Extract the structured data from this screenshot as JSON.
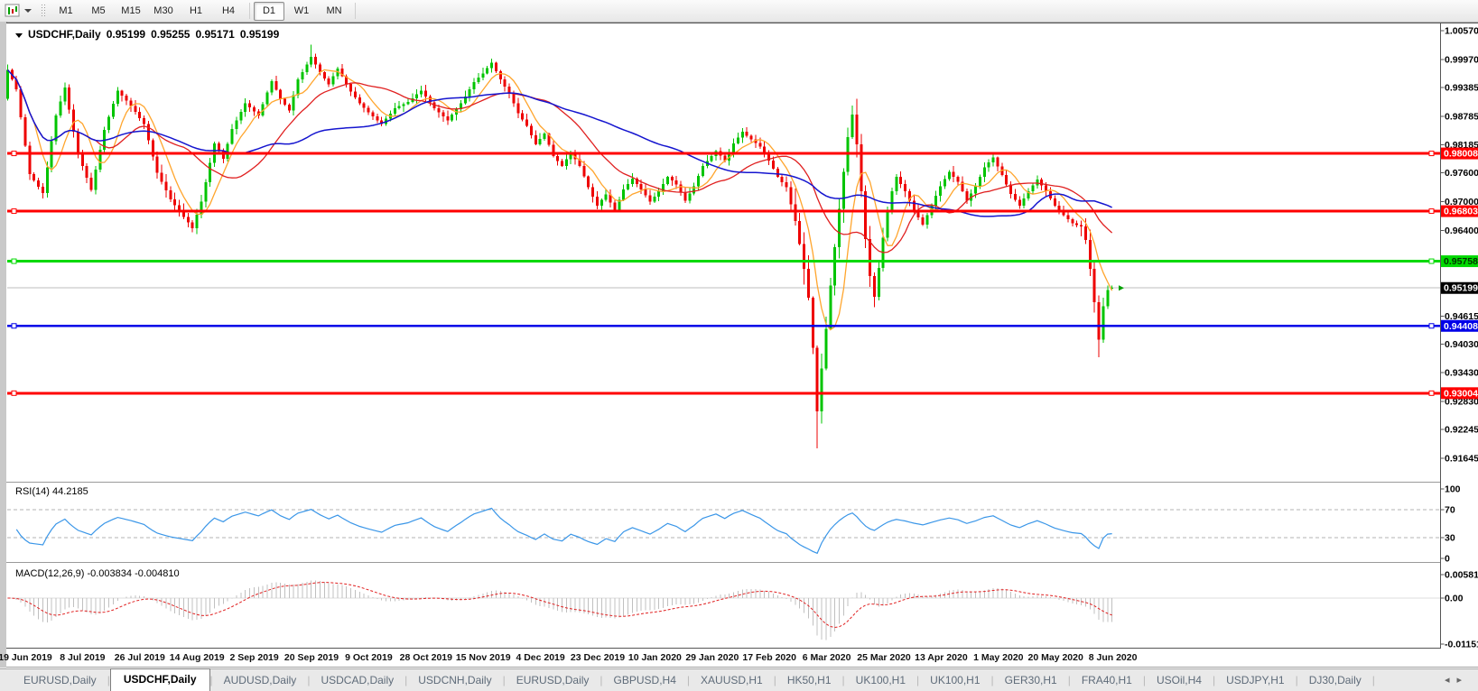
{
  "toolbar": {
    "timeframes": [
      "M1",
      "M5",
      "M15",
      "M30",
      "H1",
      "H4",
      "D1",
      "W1",
      "MN"
    ],
    "active_timeframe": "D1",
    "chart_tool_icon": "chart-icon"
  },
  "chart": {
    "title": {
      "symbol": "USDCHF,Daily",
      "open": "0.95199",
      "high": "0.95255",
      "low": "0.95171",
      "close": "0.95199"
    }
  },
  "indicators": {
    "rsi_label": "RSI(14) 44.2185",
    "macd_label": "MACD(12,26,9) -0.003834 -0.004810"
  },
  "chart_data": {
    "type": "candlestick",
    "symbol": "USDCHF",
    "timeframe": "Daily",
    "last_ohlc": {
      "open": 0.95199,
      "high": 0.95255,
      "low": 0.95171,
      "close": 0.95199
    },
    "price_axis": {
      "min": 0.91645,
      "max": 1.0057,
      "ticks": [
        "1.00570",
        "0.99970",
        "0.99385",
        "0.98785",
        "0.98185",
        "0.97600",
        "0.97000",
        "0.96400",
        "0.94615",
        "0.94030",
        "0.93430",
        "0.92830",
        "0.92245",
        "0.91645"
      ]
    },
    "levels": [
      {
        "label": "0.98008",
        "price": 0.98008,
        "color": "#ff0000",
        "text_color": "#ffffff",
        "width": 3
      },
      {
        "label": "0.96803",
        "price": 0.96803,
        "color": "#ff0000",
        "text_color": "#ffffff",
        "width": 3
      },
      {
        "label": "0.95758",
        "price": 0.95758,
        "color": "#00d900",
        "text_color": "#003300",
        "width": 3
      },
      {
        "label": "0.94408",
        "price": 0.94408,
        "color": "#0000e8",
        "text_color": "#ffffff",
        "width": 2.5
      },
      {
        "label": "0.93004",
        "price": 0.93004,
        "color": "#ff0000",
        "text_color": "#ffffff",
        "width": 3
      }
    ],
    "current_price": {
      "label": "0.95199",
      "value": 0.95199,
      "line_color": "#bcbcbc",
      "box_color": "#000000",
      "text_color": "#ffffff"
    },
    "candles": {
      "count": 252,
      "first_open": 0.9915,
      "up_color": "#00c400",
      "down_color": "#ee0000",
      "anchors": [
        [
          0,
          0.9975
        ],
        [
          2,
          0.9935
        ],
        [
          5,
          0.9758
        ],
        [
          8,
          0.9718
        ],
        [
          11,
          0.988
        ],
        [
          13,
          0.9938
        ],
        [
          16,
          0.98
        ],
        [
          19,
          0.9725
        ],
        [
          22,
          0.985
        ],
        [
          25,
          0.9932
        ],
        [
          28,
          0.99
        ],
        [
          31,
          0.9862
        ],
        [
          34,
          0.976
        ],
        [
          37,
          0.9705
        ],
        [
          40,
          0.9668
        ],
        [
          42,
          0.9645
        ],
        [
          44,
          0.97
        ],
        [
          47,
          0.9822
        ],
        [
          49,
          0.979
        ],
        [
          51,
          0.9852
        ],
        [
          54,
          0.9905
        ],
        [
          57,
          0.988
        ],
        [
          60,
          0.9952
        ],
        [
          62,
          0.9915
        ],
        [
          64,
          0.989
        ],
        [
          66,
          0.9955
        ],
        [
          69,
          1.0002
        ],
        [
          71,
          0.997
        ],
        [
          73,
          0.9945
        ],
        [
          75,
          0.9978
        ],
        [
          78,
          0.993
        ],
        [
          80,
          0.9905
        ],
        [
          83,
          0.9878
        ],
        [
          85,
          0.9862
        ],
        [
          88,
          0.9895
        ],
        [
          91,
          0.9908
        ],
        [
          94,
          0.9932
        ],
        [
          97,
          0.9895
        ],
        [
          100,
          0.987
        ],
        [
          103,
          0.9905
        ],
        [
          106,
          0.995
        ],
        [
          108,
          0.9968
        ],
        [
          110,
          0.999
        ],
        [
          112,
          0.9955
        ],
        [
          114,
          0.9925
        ],
        [
          116,
          0.9885
        ],
        [
          118,
          0.9858
        ],
        [
          120,
          0.982
        ],
        [
          122,
          0.9842
        ],
        [
          124,
          0.9795
        ],
        [
          126,
          0.9775
        ],
        [
          128,
          0.9802
        ],
        [
          130,
          0.9775
        ],
        [
          132,
          0.973
        ],
        [
          134,
          0.9692
        ],
        [
          136,
          0.9715
        ],
        [
          138,
          0.9682
        ],
        [
          140,
          0.9726
        ],
        [
          142,
          0.9748
        ],
        [
          144,
          0.9726
        ],
        [
          146,
          0.97
        ],
        [
          148,
          0.9722
        ],
        [
          150,
          0.9752
        ],
        [
          152,
          0.9736
        ],
        [
          154,
          0.9702
        ],
        [
          156,
          0.9732
        ],
        [
          158,
          0.9775
        ],
        [
          161,
          0.9806
        ],
        [
          163,
          0.9786
        ],
        [
          165,
          0.9822
        ],
        [
          167,
          0.9846
        ],
        [
          169,
          0.983
        ],
        [
          171,
          0.9815
        ],
        [
          173,
          0.9786
        ],
        [
          175,
          0.9752
        ],
        [
          177,
          0.973
        ],
        [
          179,
          0.966
        ],
        [
          180,
          0.9612
        ],
        [
          181,
          0.956
        ],
        [
          182,
          0.95
        ],
        [
          183,
          0.9395
        ],
        [
          184,
          0.9262
        ],
        [
          185,
          0.9352
        ],
        [
          186,
          0.9435
        ],
        [
          187,
          0.9525
        ],
        [
          188,
          0.9605
        ],
        [
          189,
          0.9685
        ],
        [
          190,
          0.9762
        ],
        [
          191,
          0.9835
        ],
        [
          192,
          0.9882
        ],
        [
          193,
          0.982
        ],
        [
          194,
          0.9722
        ],
        [
          195,
          0.9622
        ],
        [
          196,
          0.9545
        ],
        [
          197,
          0.9502
        ],
        [
          198,
          0.9562
        ],
        [
          199,
          0.9625
        ],
        [
          200,
          0.9682
        ],
        [
          201,
          0.9722
        ],
        [
          202,
          0.9752
        ],
        [
          204,
          0.9722
        ],
        [
          206,
          0.9682
        ],
        [
          208,
          0.9652
        ],
        [
          210,
          0.9692
        ],
        [
          212,
          0.9732
        ],
        [
          214,
          0.9762
        ],
        [
          216,
          0.9742
        ],
        [
          218,
          0.9702
        ],
        [
          220,
          0.9732
        ],
        [
          222,
          0.9772
        ],
        [
          224,
          0.9792
        ],
        [
          226,
          0.9756
        ],
        [
          228,
          0.9716
        ],
        [
          230,
          0.9692
        ],
        [
          232,
          0.9722
        ],
        [
          234,
          0.9746
        ],
        [
          236,
          0.9722
        ],
        [
          238,
          0.9692
        ],
        [
          240,
          0.9672
        ],
        [
          242,
          0.9655
        ],
        [
          244,
          0.9648
        ],
        [
          245,
          0.962
        ],
        [
          246,
          0.956
        ],
        [
          247,
          0.949
        ],
        [
          248,
          0.9412
        ],
        [
          249,
          0.9482
        ],
        [
          250,
          0.9516
        ],
        [
          251,
          0.95199
        ]
      ],
      "specials": {
        "69": {
          "high": 1.0028
        },
        "184": {
          "low": 0.9185
        },
        "192": {
          "high": 0.9901
        },
        "248": {
          "low": 0.9375
        },
        "251": {
          "open": 0.95199,
          "high": 0.95255,
          "low": 0.95171,
          "close": 0.95199
        }
      }
    },
    "moving_averages": [
      {
        "name": "fast-ma",
        "period": 7,
        "color": "#ffa52d",
        "stroke_width": 1.3
      },
      {
        "name": "medium-ma",
        "period": 21,
        "color": "#e02020",
        "stroke_width": 1.3
      },
      {
        "name": "slow-ma",
        "period": 50,
        "color": "#1515cf",
        "stroke_width": 1.5
      }
    ],
    "rsi": {
      "period": 14,
      "value": 44.2185,
      "color": "#3a96e8",
      "axis_ticks": [
        "100",
        "70",
        "30",
        "0"
      ],
      "level_lines": [
        70,
        30
      ],
      "range": [
        0,
        100
      ]
    },
    "macd": {
      "fast": 12,
      "slow": 26,
      "signal": 9,
      "main_value": -0.003834,
      "signal_value": -0.00481,
      "histogram_color": "#c0c0c0",
      "signal_color": "#e02020",
      "axis_ticks": [
        {
          "label": "0.005818",
          "value": 0.005818
        },
        {
          "label": "0.00",
          "value": 0
        },
        {
          "label": "-0.01151",
          "value": -0.01151
        }
      ]
    },
    "dates": [
      "19 Jun 2019",
      "8 Jul 2019",
      "26 Jul 2019",
      "14 Aug 2019",
      "2 Sep 2019",
      "20 Sep 2019",
      "9 Oct 2019",
      "28 Oct 2019",
      "15 Nov 2019",
      "4 Dec 2019",
      "23 Dec 2019",
      "10 Jan 2020",
      "29 Jan 2020",
      "17 Feb 2020",
      "6 Mar 2020",
      "25 Mar 2020",
      "13 Apr 2020",
      "1 May 2020",
      "20 May 2020",
      "8 Jun 2020"
    ]
  },
  "tabs": {
    "items": [
      {
        "label": "EURUSD,Daily"
      },
      {
        "label": "USDCHF,Daily",
        "active": true
      },
      {
        "label": "AUDUSD,Daily"
      },
      {
        "label": "USDCAD,Daily"
      },
      {
        "label": "USDCNH,Daily"
      },
      {
        "label": "EURUSD,Daily"
      },
      {
        "label": "GBPUSD,H4"
      },
      {
        "label": "XAUUSD,H1"
      },
      {
        "label": "HK50,H1"
      },
      {
        "label": "UK100,H1"
      },
      {
        "label": "UK100,H1"
      },
      {
        "label": "GER30,H1"
      },
      {
        "label": "FRA40,H1"
      },
      {
        "label": "USOil,H4"
      },
      {
        "label": "USDJPY,H1"
      },
      {
        "label": "DJ30,Daily"
      }
    ],
    "scroll_left_arrow": "◂",
    "scroll_right_arrow": "▸"
  }
}
